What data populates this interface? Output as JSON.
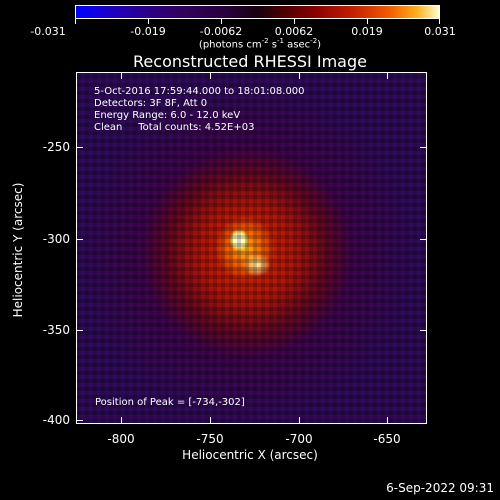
{
  "colorbar": {
    "labels": [
      "-0.031",
      "-0.019",
      "-0.0062",
      "0.0062",
      "0.019",
      "0.031"
    ],
    "unit_main": "(photons cm",
    "unit_sup1": "-2",
    "unit_mid1": " s",
    "unit_sup2": "-1",
    "unit_mid2": " asec",
    "unit_sup3": "-2",
    "unit_end": ")"
  },
  "title": "Reconstructed RHESSI Image",
  "info": {
    "time": "5-Oct-2016 17:59:44.000 to 18:01:08.000",
    "detectors": "Detectors: 3F 8F, Att 0",
    "energy": "Energy Range: 6.0 - 12.0 keV",
    "clean": "Clean     Total counts: 4.52E+03",
    "peak": "Position of Peak = [-734,-302]"
  },
  "axes": {
    "xlabel": "Heliocentric X (arcsec)",
    "ylabel": "Heliocentric Y (arcsec)",
    "xticks": [
      "-800",
      "-750",
      "-700",
      "-650"
    ],
    "yticks": [
      "-250",
      "-300",
      "-350",
      "-400"
    ]
  },
  "timestamp": "6-Sep-2022 09:31"
}
